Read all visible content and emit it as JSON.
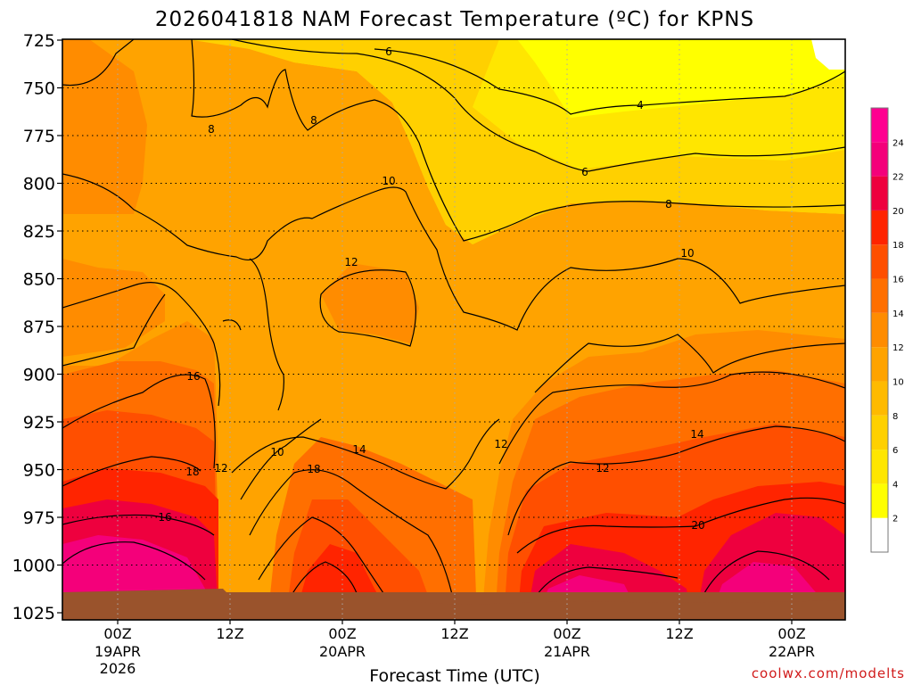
{
  "chart_data": {
    "type": "heatmap",
    "title": "2026041818 NAM Forecast Temperature (ºC) for KPNS",
    "xlabel": "Forecast Time (UTC)",
    "ylabel": "",
    "credit": "coolwx.com/modelts",
    "y_axis": {
      "unit": "hPa",
      "ticks": [
        725,
        750,
        775,
        800,
        825,
        850,
        875,
        900,
        925,
        950,
        975,
        1000,
        1025
      ],
      "range": [
        725,
        1025
      ]
    },
    "x_axis": {
      "ticks": [
        {
          "label": "00Z",
          "sub": "19APR",
          "sub2": "2026"
        },
        {
          "label": "12Z",
          "sub": "",
          "sub2": ""
        },
        {
          "label": "00Z",
          "sub": "20APR",
          "sub2": ""
        },
        {
          "label": "12Z",
          "sub": "",
          "sub2": ""
        },
        {
          "label": "00Z",
          "sub": "21APR",
          "sub2": ""
        },
        {
          "label": "12Z",
          "sub": "",
          "sub2": ""
        },
        {
          "label": "00Z",
          "sub": "22APR",
          "sub2": ""
        }
      ]
    },
    "colorbar": {
      "levels": [
        2,
        4,
        6,
        8,
        10,
        12,
        14,
        16,
        18,
        20,
        22,
        24
      ],
      "colors": [
        "#ffffff",
        "#ffff00",
        "#ffe600",
        "#ffd000",
        "#ffba00",
        "#ffa300",
        "#ff8c00",
        "#ff6f00",
        "#ff4f00",
        "#ff2400",
        "#ee003e",
        "#f4007a",
        "#ff0090"
      ]
    },
    "contour_labels": [
      "6",
      "4",
      "8",
      "8",
      "6",
      "10",
      "8",
      "12",
      "10",
      "16",
      "14",
      "18",
      "12",
      "10",
      "14",
      "12",
      "12",
      "16",
      "20",
      "18"
    ],
    "grid": true,
    "ground_color": "#9a532c"
  }
}
